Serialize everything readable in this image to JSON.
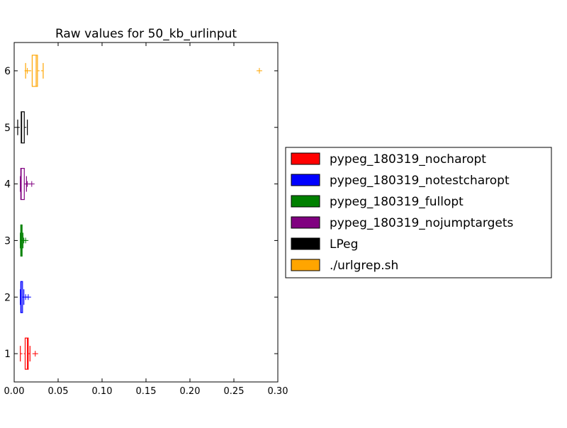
{
  "chart_data": {
    "type": "boxplot",
    "orientation": "horizontal",
    "title": "Raw values for 50_kb_urlinput",
    "xlabel": "",
    "ylabel": "",
    "xlim": [
      0,
      0.3
    ],
    "ylim": [
      0.5,
      6.5
    ],
    "x_ticks": [
      "0.00",
      "0.05",
      "0.10",
      "0.15",
      "0.20",
      "0.25",
      "0.30"
    ],
    "y_ticks": [
      "1",
      "2",
      "3",
      "4",
      "5",
      "6"
    ],
    "grid": false,
    "legend_position": "right",
    "series": [
      {
        "name": "pypeg_180319_nocharopt",
        "color": "#ff0000",
        "position": 1,
        "whisker_low": 0.007,
        "q1": 0.0125,
        "median": 0.015,
        "q3": 0.016,
        "whisker_high": 0.018,
        "outliers": [
          0.024
        ]
      },
      {
        "name": "pypeg_180319_notestcharopt",
        "color": "#0000ff",
        "position": 2,
        "whisker_low": 0.007,
        "q1": 0.0075,
        "median": 0.008,
        "q3": 0.0095,
        "whisker_high": 0.011,
        "outliers": [
          0.013,
          0.016
        ]
      },
      {
        "name": "pypeg_180319_fullopt",
        "color": "#008000",
        "position": 3,
        "whisker_low": 0.007,
        "q1": 0.0075,
        "median": 0.008,
        "q3": 0.009,
        "whisker_high": 0.01,
        "outliers": [
          0.011,
          0.013
        ]
      },
      {
        "name": "pypeg_180319_nojumptargets",
        "color": "#800080",
        "position": 4,
        "whisker_low": 0.007,
        "q1": 0.0075,
        "median": 0.008,
        "q3": 0.0115,
        "whisker_high": 0.014,
        "outliers": [
          0.015,
          0.02
        ]
      },
      {
        "name": "LPeg",
        "color": "#000000",
        "position": 5,
        "whisker_low": 0.004,
        "q1": 0.008,
        "median": 0.0085,
        "q3": 0.0115,
        "whisker_high": 0.015,
        "outliers": []
      },
      {
        "name": "./urlgrep.sh",
        "color": "#ffa500",
        "position": 6,
        "whisker_low": 0.013,
        "q1": 0.0205,
        "median": 0.025,
        "q3": 0.0265,
        "whisker_high": 0.033,
        "outliers": [
          0.015,
          0.279
        ]
      }
    ]
  }
}
